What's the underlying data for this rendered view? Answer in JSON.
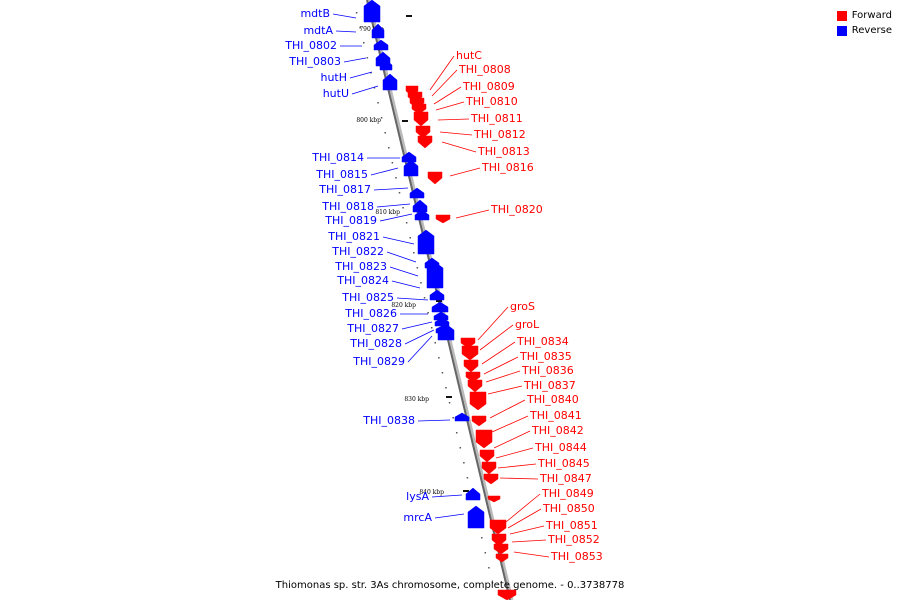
{
  "legend": {
    "forward": {
      "label": "Forward",
      "color": "#ff0000"
    },
    "reverse": {
      "label": "Reverse",
      "color": "#0000ff"
    }
  },
  "caption": "Thiomonas sp. str. 3As chromosome, complete genome. - 0..3738778",
  "kbp_markers": [
    "790 kbp",
    "800 kbp",
    "810 kbp",
    "820 kbp",
    "830 kbp",
    "840 kbp"
  ],
  "reverse_genes": [
    "mdtB",
    "mdtA",
    "THI_0802",
    "THI_0803",
    "hutH",
    "hutU",
    "THI_0814",
    "THI_0815",
    "THI_0817",
    "THI_0818",
    "THI_0819",
    "THI_0821",
    "THI_0822",
    "THI_0823",
    "THI_0824",
    "THI_0825",
    "THI_0826",
    "THI_0827",
    "THI_0828",
    "THI_0829",
    "THI_0838",
    "lysA",
    "mrcA"
  ],
  "forward_genes": [
    "hutC",
    "THI_0808",
    "THI_0809",
    "THI_0810",
    "THI_0811",
    "THI_0812",
    "THI_0813",
    "THI_0816",
    "THI_0820",
    "groS",
    "groL",
    "THI_0834",
    "THI_0835",
    "THI_0836",
    "THI_0837",
    "THI_0840",
    "THI_0841",
    "THI_0842",
    "THI_0844",
    "THI_0845",
    "THI_0847",
    "THI_0849",
    "THI_0850",
    "THI_0851",
    "THI_0852",
    "THI_0853"
  ]
}
